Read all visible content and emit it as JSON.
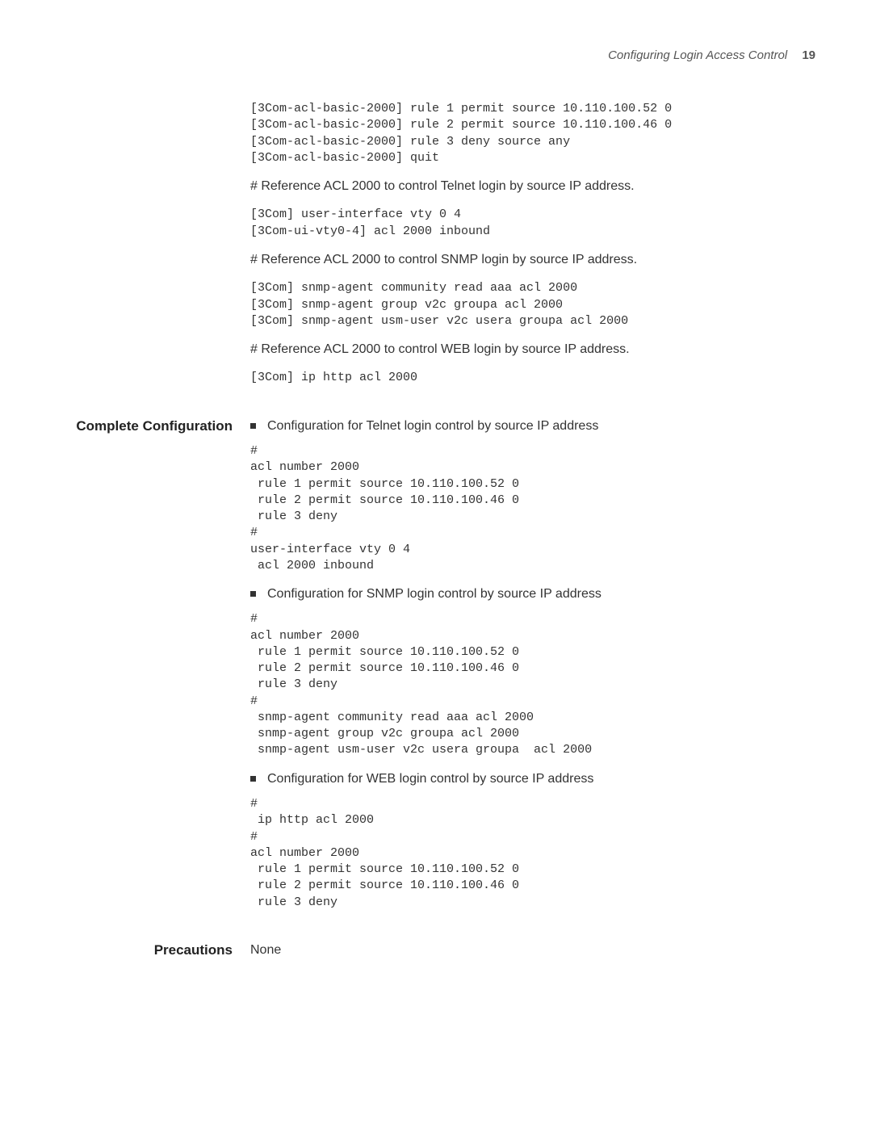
{
  "header": {
    "title": "Configuring Login Access Control",
    "page_number": "19"
  },
  "top_code": "[3Com-acl-basic-2000] rule 1 permit source 10.110.100.52 0\n[3Com-acl-basic-2000] rule 2 permit source 10.110.100.46 0\n[3Com-acl-basic-2000] rule 3 deny source any\n[3Com-acl-basic-2000] quit",
  "comment_telnet": "# Reference ACL 2000 to control Telnet login by source IP address.",
  "code_telnet": "[3Com] user-interface vty 0 4\n[3Com-ui-vty0-4] acl 2000 inbound",
  "comment_snmp": "# Reference ACL 2000 to control SNMP login by source IP address.",
  "code_snmp": "[3Com] snmp-agent community read aaa acl 2000\n[3Com] snmp-agent group v2c groupa acl 2000\n[3Com] snmp-agent usm-user v2c usera groupa acl 2000",
  "comment_web": "# Reference ACL 2000 to control WEB login by source IP address.",
  "code_web": "[3Com] ip http acl 2000",
  "labels": {
    "complete_config": "Complete Configuration",
    "precautions": "Precautions"
  },
  "bullets": {
    "telnet": "Configuration for Telnet login control by source IP address",
    "snmp": "Configuration for SNMP login control by source IP address",
    "web": "Configuration for WEB login control by source IP address"
  },
  "config_telnet": "#\nacl number 2000\n rule 1 permit source 10.110.100.52 0\n rule 2 permit source 10.110.100.46 0\n rule 3 deny\n#\nuser-interface vty 0 4\n acl 2000 inbound",
  "config_snmp": "#\nacl number 2000\n rule 1 permit source 10.110.100.52 0\n rule 2 permit source 10.110.100.46 0\n rule 3 deny\n#\n snmp-agent community read aaa acl 2000\n snmp-agent group v2c groupa acl 2000\n snmp-agent usm-user v2c usera groupa  acl 2000",
  "config_web": "#\n ip http acl 2000\n#\nacl number 2000\n rule 1 permit source 10.110.100.52 0\n rule 2 permit source 10.110.100.46 0\n rule 3 deny",
  "precautions_value": "None"
}
